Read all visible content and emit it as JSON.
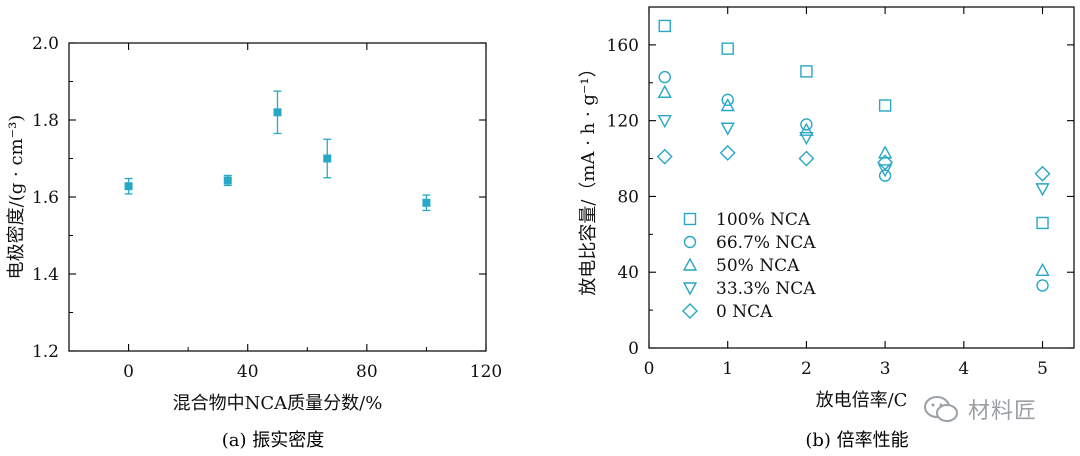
{
  "charts_meta": {
    "a_caption": "(a) 振实密度",
    "b_caption": "(b) 倍率性能"
  },
  "watermark": {
    "text": "材料匠",
    "icon": "wechat-icon"
  },
  "colors": {
    "marker": "#27a8c4",
    "axis": "#000000"
  },
  "chart_data": [
    {
      "type": "scatter",
      "title": "",
      "caption": "(a) 振实密度",
      "xlabel": "混合物中NCA质量分数/%",
      "ylabel": "电极密度/(g · cm⁻³)",
      "xlim": [
        -20,
        120
      ],
      "ylim": [
        1.2,
        2.0
      ],
      "xticks": [
        0,
        40,
        80,
        120
      ],
      "yticks": [
        1.2,
        1.4,
        1.6,
        1.8,
        2.0
      ],
      "grid": false,
      "series": [
        {
          "marker": "filled-square",
          "points": [
            {
              "x": 0,
              "y": 1.628,
              "err": 0.02
            },
            {
              "x": 33.3,
              "y": 1.643,
              "err": 0.013
            },
            {
              "x": 50,
              "y": 1.82,
              "err": 0.055
            },
            {
              "x": 66.7,
              "y": 1.7,
              "err": 0.05
            },
            {
              "x": 100,
              "y": 1.585,
              "err": 0.02
            }
          ]
        }
      ]
    },
    {
      "type": "scatter",
      "title": "",
      "caption": "(b) 倍率性能",
      "xlabel": "放电倍率/C",
      "ylabel": "放电比容量/（mA · h · g⁻¹）",
      "xlim": [
        0,
        5.4
      ],
      "ylim": [
        0,
        180
      ],
      "xticks": [
        0,
        1,
        2,
        3,
        4,
        5
      ],
      "yticks": [
        0,
        40,
        80,
        120,
        160
      ],
      "grid": false,
      "legend": "center-left",
      "series": [
        {
          "name": "100% NCA",
          "marker": "square",
          "points": [
            {
              "x": 0.2,
              "y": 170
            },
            {
              "x": 1,
              "y": 158
            },
            {
              "x": 2,
              "y": 146
            },
            {
              "x": 3,
              "y": 128
            },
            {
              "x": 5,
              "y": 66
            }
          ]
        },
        {
          "name": "66.7% NCA",
          "marker": "circle",
          "points": [
            {
              "x": 0.2,
              "y": 143
            },
            {
              "x": 1,
              "y": 131
            },
            {
              "x": 2,
              "y": 118
            },
            {
              "x": 3,
              "y": 91
            },
            {
              "x": 5,
              "y": 33
            }
          ]
        },
        {
          "name": "50% NCA",
          "marker": "triangle-up",
          "points": [
            {
              "x": 0.2,
              "y": 135
            },
            {
              "x": 1,
              "y": 128
            },
            {
              "x": 2,
              "y": 115
            },
            {
              "x": 3,
              "y": 103
            },
            {
              "x": 5,
              "y": 41
            }
          ]
        },
        {
          "name": "33.3% NCA",
          "marker": "triangle-down",
          "points": [
            {
              "x": 0.2,
              "y": 120
            },
            {
              "x": 1,
              "y": 116
            },
            {
              "x": 2,
              "y": 111
            },
            {
              "x": 3,
              "y": 94
            },
            {
              "x": 5,
              "y": 84
            }
          ]
        },
        {
          "name": "0 NCA",
          "marker": "diamond",
          "points": [
            {
              "x": 0.2,
              "y": 101
            },
            {
              "x": 1,
              "y": 103
            },
            {
              "x": 2,
              "y": 100
            },
            {
              "x": 3,
              "y": 98
            },
            {
              "x": 5,
              "y": 92
            }
          ]
        }
      ]
    }
  ]
}
